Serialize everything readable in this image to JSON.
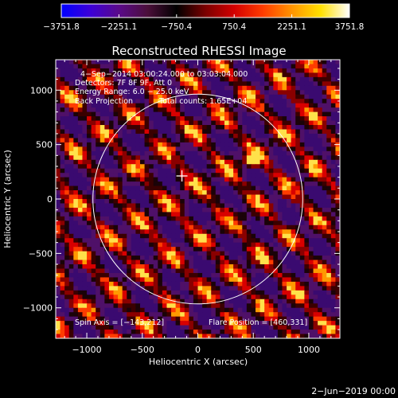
{
  "chart_data": {
    "type": "heatmap",
    "title": "Reconstructed RHESSI Image",
    "xlabel": "Heliocentric X (arcsec)",
    "ylabel": "Heliocentric Y (arcsec)",
    "xlim": [
      -1280,
      1280
    ],
    "ylim": [
      -1280,
      1280
    ],
    "x_ticks": [
      -1000,
      -500,
      0,
      500,
      1000
    ],
    "y_ticks": [
      -1000,
      -500,
      0,
      500,
      1000
    ],
    "x_tick_labels": [
      "−1000",
      "−500",
      "0",
      "500",
      "1000"
    ],
    "y_tick_labels": [
      "−1000",
      "−500",
      "0",
      "500",
      "1000"
    ],
    "colorbar": {
      "min": -3751.8,
      "max": 3751.8,
      "ticks": [
        -3751.8,
        -2251.1,
        -750.4,
        750.4,
        2251.1,
        3751.8
      ],
      "tick_labels": [
        "−3751.8",
        "−2251.1",
        "−750.4",
        "750.4",
        "2251.1",
        "3751.8"
      ],
      "colors": [
        "#0000ff",
        "#3c00d8",
        "#5a0a8a",
        "#4b0f3a",
        "#000000",
        "#7a0000",
        "#d40000",
        "#ff3c00",
        "#ff9400",
        "#ffe000",
        "#ffffff"
      ]
    },
    "annotations": {
      "time_range": "4−Sep−2014 03:00:24.000 to 03:03:04.000",
      "detectors": "Detectors: 7F 8F 9F, Att 0",
      "energy_range": "Energy Range: 6.0 − 25.0 keV",
      "method": "Back Projection",
      "total_counts": "Total counts: 1.65E+04",
      "spin_axis": "Spin Axis = [−143,212]",
      "flare_position": "Flare Position = [460,331]",
      "date_stamp": "2−Jun−2019 00:00"
    },
    "solar_limb_radius": 945,
    "spin_axis": [
      -143,
      212
    ],
    "flare_position": [
      460,
      331
    ],
    "peak_source": [
      480,
      340
    ],
    "fringe_pattern": "diagonal stripes, descending left to right"
  }
}
